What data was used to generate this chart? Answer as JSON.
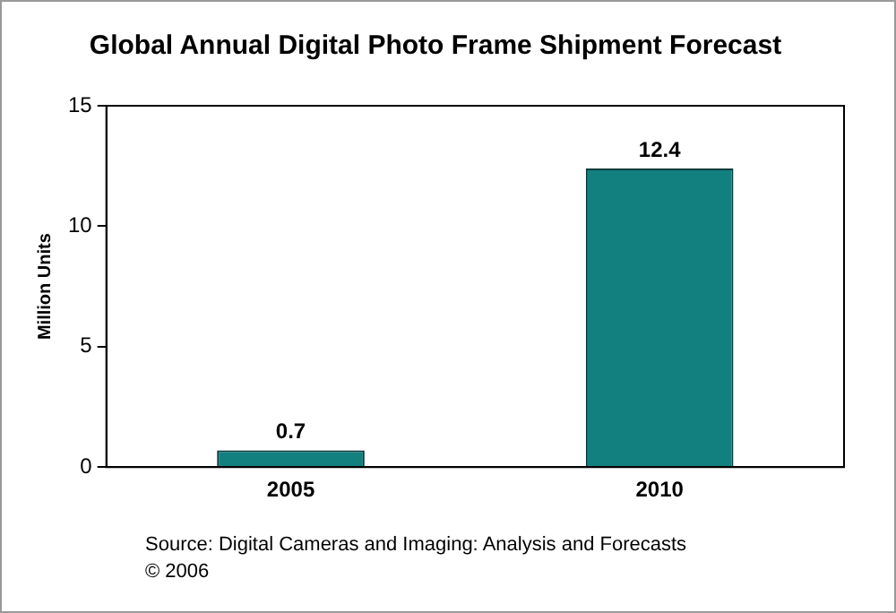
{
  "chart_data": {
    "type": "bar",
    "title": "Global Annual Digital Photo Frame Shipment Forecast",
    "ylabel": "Million Units",
    "categories": [
      "2005",
      "2010"
    ],
    "values": [
      0.7,
      12.4
    ],
    "color": "#138080",
    "ylim": [
      0,
      15
    ],
    "yticks": [
      0,
      5,
      10,
      15
    ],
    "grid": false,
    "data_labels": true,
    "legend": false,
    "annotations": [
      "Source: Digital Cameras and Imaging: Analysis and Forecasts",
      "© 2006"
    ]
  }
}
